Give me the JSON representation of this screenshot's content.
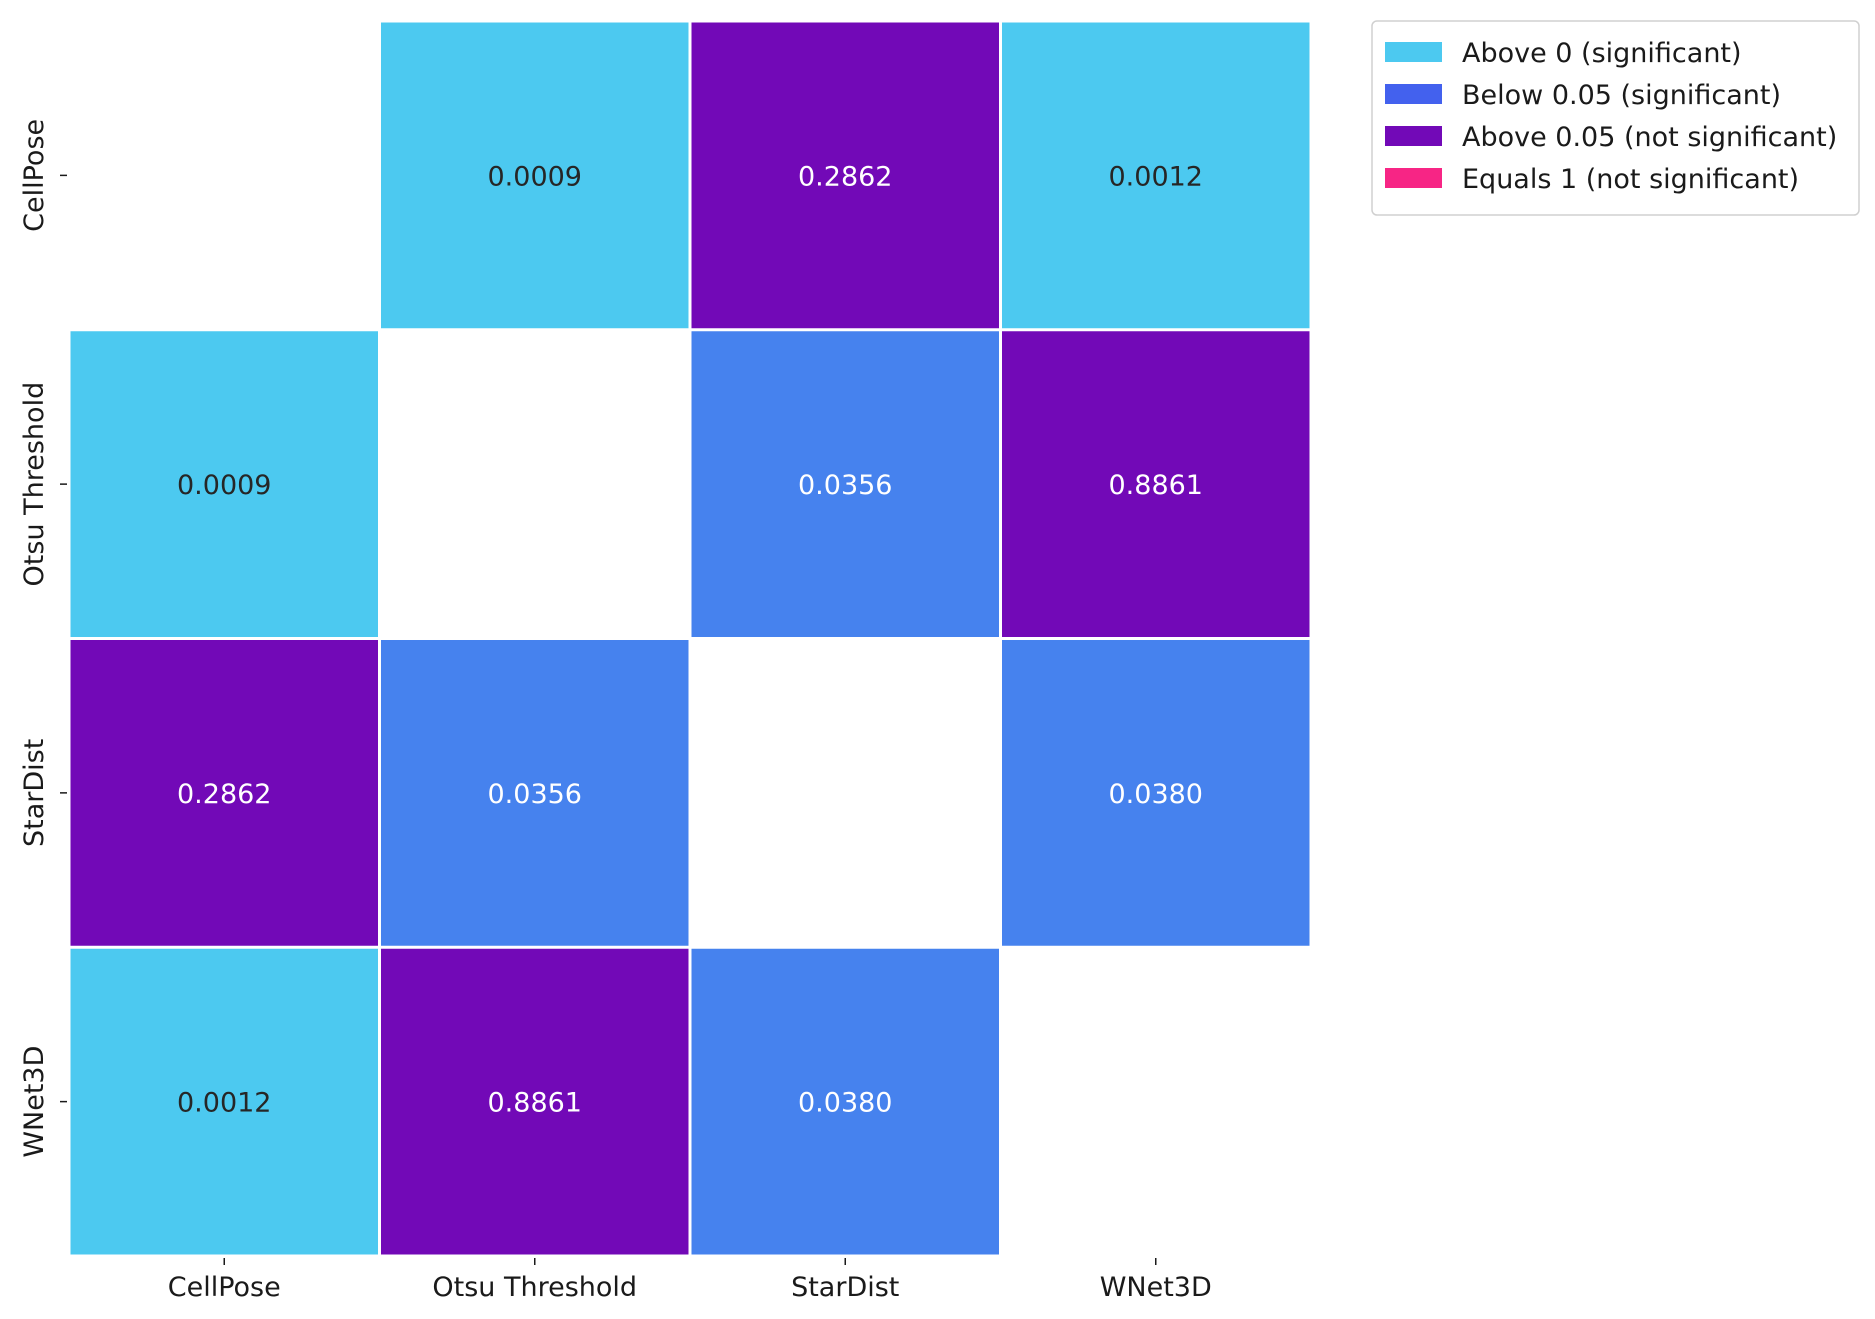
{
  "chart_data": {
    "type": "heatmap",
    "x_categories": [
      "CellPose",
      "Otsu Threshold",
      "StarDist",
      "WNet3D"
    ],
    "y_categories": [
      "CellPose",
      "Otsu Threshold",
      "StarDist",
      "WNet3D"
    ],
    "values": [
      [
        null,
        0.0009,
        0.2862,
        0.0012
      ],
      [
        0.0009,
        null,
        0.0356,
        0.8861
      ],
      [
        0.2862,
        0.0356,
        null,
        0.038
      ],
      [
        0.0012,
        0.8861,
        0.038,
        null
      ]
    ],
    "value_labels": [
      [
        "",
        "0.0009",
        "0.2862",
        "0.0012"
      ],
      [
        "0.0009",
        "",
        "0.0356",
        "0.8861"
      ],
      [
        "0.2862",
        "0.0356",
        "",
        "0.0380"
      ],
      [
        "0.0012",
        "0.8861",
        "0.0380",
        ""
      ]
    ],
    "categories_color": [
      [
        null,
        "above0",
        "above005",
        "above0"
      ],
      [
        "above0",
        null,
        "below005",
        "above005"
      ],
      [
        "above005",
        "below005",
        null,
        "below005"
      ],
      [
        "above0",
        "above005",
        "below005",
        null
      ]
    ],
    "legend": {
      "placement": "top-right outside",
      "items": [
        {
          "key": "above0",
          "label": "Above 0 (significant)",
          "color": "#4cc9f0"
        },
        {
          "key": "below005",
          "label": "Below 0.05 (significant)",
          "color": "#4361ee"
        },
        {
          "key": "above005",
          "label": "Above 0.05 (not significant)",
          "color": "#7209b7"
        },
        {
          "key": "equals1",
          "label": "Equals 1 (not significant)",
          "color": "#f72585"
        }
      ]
    },
    "cell_colors": {
      "above0": "#4cc9f0",
      "below005": "#4682ee",
      "above005": "#7209b7",
      "equals1": "#f72585"
    },
    "cell_text_colors": {
      "above0": "#262626",
      "below005": "#ffffff",
      "above005": "#ffffff",
      "equals1": "#ffffff"
    }
  }
}
